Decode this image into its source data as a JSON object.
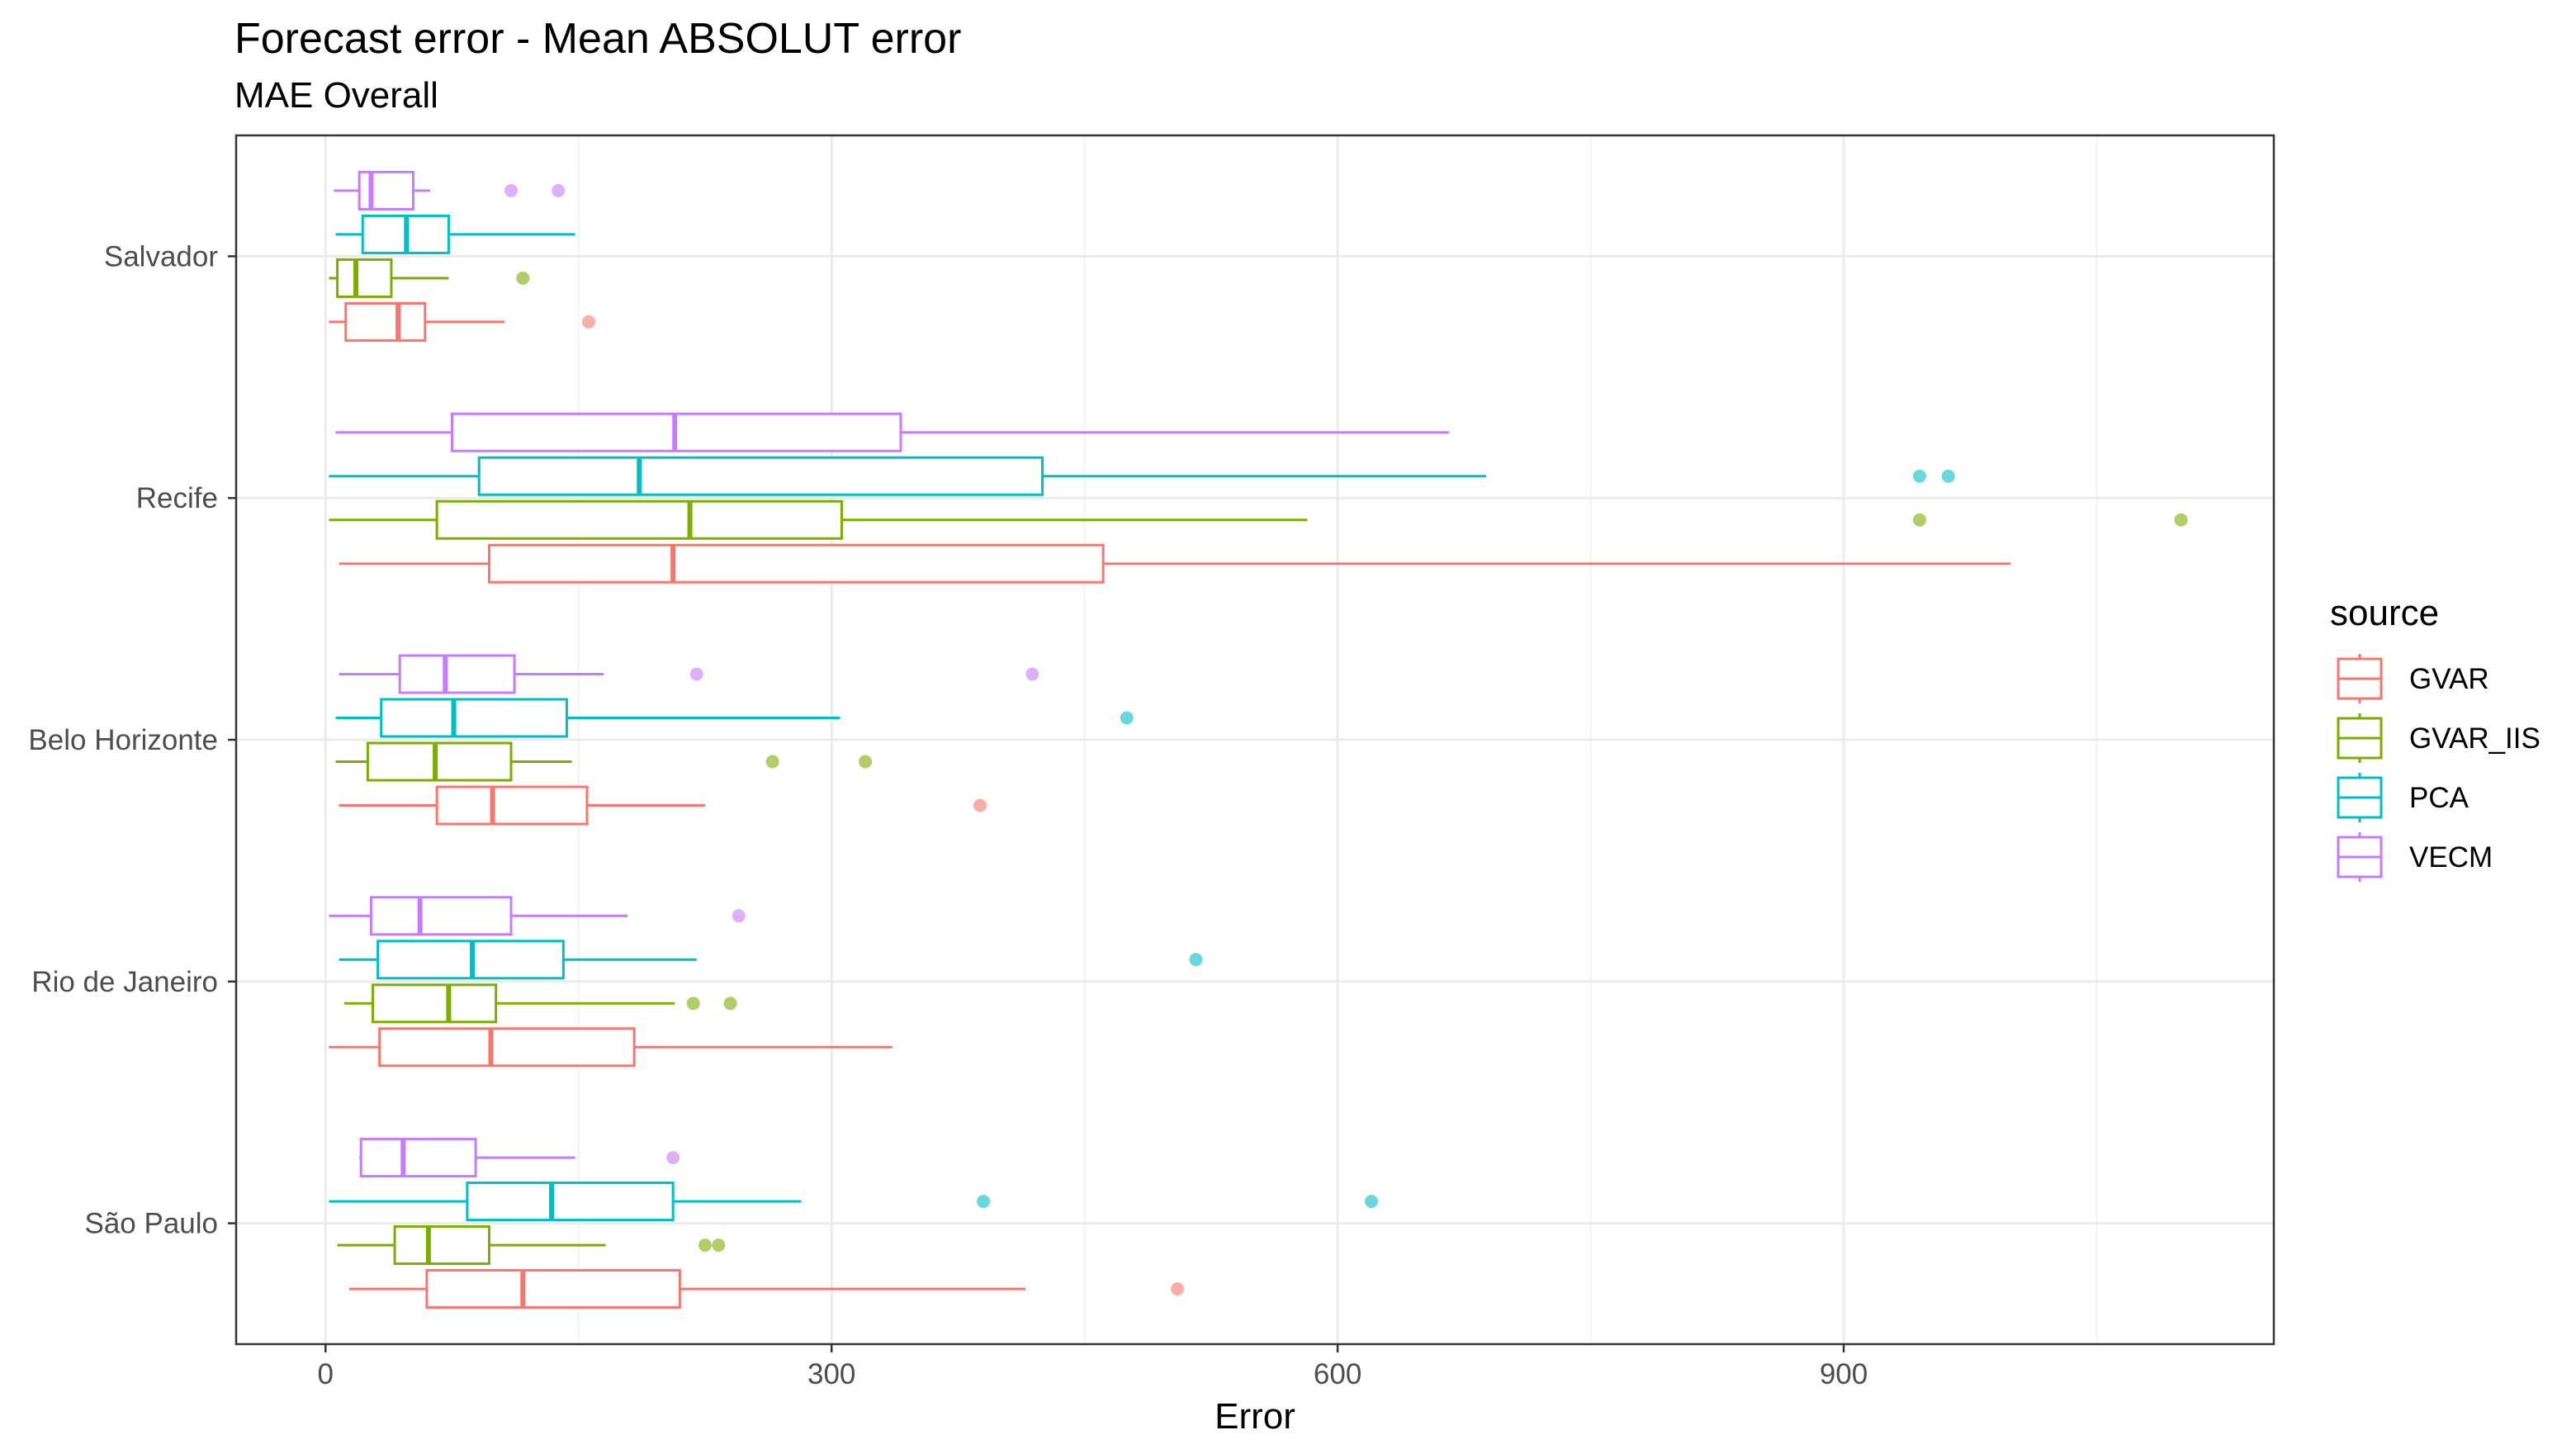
{
  "chart_data": {
    "type": "boxplot",
    "orientation": "horizontal",
    "title": "Forecast error - Mean ABSOLUT error",
    "subtitle": "MAE Overall",
    "xlabel": "Error",
    "ylabel": "",
    "xlim": [
      -53,
      1155
    ],
    "xticks": [
      0,
      300,
      600,
      900
    ],
    "categories": [
      "Salvador",
      "Recife",
      "Belo Horizonte",
      "Rio de Janeiro",
      "São Paulo"
    ],
    "legend": {
      "title": "source",
      "position": "right"
    },
    "grid": true,
    "series": [
      {
        "name": "GVAR",
        "color": "#F8766D",
        "boxes": [
          {
            "category": "Salvador",
            "min": 2,
            "q1": 12,
            "median": 43,
            "q3": 59,
            "max": 106,
            "outliers": [
              156
            ]
          },
          {
            "category": "Recife",
            "min": 8,
            "q1": 97,
            "median": 206,
            "q3": 461,
            "max": 999,
            "outliers": []
          },
          {
            "category": "Belo Horizonte",
            "min": 8,
            "q1": 66,
            "median": 99,
            "q3": 155,
            "max": 225,
            "outliers": [
              388
            ]
          },
          {
            "category": "Rio de Janeiro",
            "min": 2,
            "q1": 32,
            "median": 98,
            "q3": 183,
            "max": 336,
            "outliers": []
          },
          {
            "category": "São Paulo",
            "min": 14,
            "q1": 60,
            "median": 117,
            "q3": 210,
            "max": 415,
            "outliers": [
              505
            ]
          }
        ]
      },
      {
        "name": "GVAR_IIS",
        "color": "#7CAE00",
        "boxes": [
          {
            "category": "Salvador",
            "min": 2,
            "q1": 7,
            "median": 18,
            "q3": 39,
            "max": 73,
            "outliers": [
              117
            ]
          },
          {
            "category": "Recife",
            "min": 2,
            "q1": 66,
            "median": 216,
            "q3": 306,
            "max": 582,
            "outliers": [
              945,
              1100
            ]
          },
          {
            "category": "Belo Horizonte",
            "min": 6,
            "q1": 25,
            "median": 65,
            "q3": 110,
            "max": 146,
            "outliers": [
              265,
              320
            ]
          },
          {
            "category": "Rio de Janeiro",
            "min": 11,
            "q1": 28,
            "median": 73,
            "q3": 101,
            "max": 207,
            "outliers": [
              218,
              240
            ]
          },
          {
            "category": "São Paulo",
            "min": 7,
            "q1": 41,
            "median": 61,
            "q3": 97,
            "max": 166,
            "outliers": [
              225,
              233
            ]
          }
        ]
      },
      {
        "name": "PCA",
        "color": "#00BFC4",
        "boxes": [
          {
            "category": "Salvador",
            "min": 6,
            "q1": 22,
            "median": 48,
            "q3": 73,
            "max": 148,
            "outliers": []
          },
          {
            "category": "Recife",
            "min": 2,
            "q1": 91,
            "median": 186,
            "q3": 425,
            "max": 688,
            "outliers": [
              945,
              962
            ]
          },
          {
            "category": "Belo Horizonte",
            "min": 6,
            "q1": 33,
            "median": 76,
            "q3": 143,
            "max": 305,
            "outliers": [
              475
            ]
          },
          {
            "category": "Rio de Janeiro",
            "min": 8,
            "q1": 31,
            "median": 87,
            "q3": 141,
            "max": 220,
            "outliers": [
              516
            ]
          },
          {
            "category": "São Paulo",
            "min": 2,
            "q1": 84,
            "median": 134,
            "q3": 206,
            "max": 282,
            "outliers": [
              390,
              620
            ]
          }
        ]
      },
      {
        "name": "VECM",
        "color": "#C77CFF",
        "boxes": [
          {
            "category": "Salvador",
            "min": 5,
            "q1": 20,
            "median": 27,
            "q3": 52,
            "max": 62,
            "outliers": [
              110,
              138
            ]
          },
          {
            "category": "Recife",
            "min": 6,
            "q1": 75,
            "median": 207,
            "q3": 341,
            "max": 666,
            "outliers": []
          },
          {
            "category": "Belo Horizonte",
            "min": 8,
            "q1": 44,
            "median": 71,
            "q3": 112,
            "max": 165,
            "outliers": [
              220,
              419
            ]
          },
          {
            "category": "Rio de Janeiro",
            "min": 2,
            "q1": 27,
            "median": 56,
            "q3": 110,
            "max": 179,
            "outliers": [
              245
            ]
          },
          {
            "category": "São Paulo",
            "min": 20,
            "q1": 21,
            "median": 46,
            "q3": 89,
            "max": 148,
            "outliers": [
              206
            ]
          }
        ]
      }
    ]
  }
}
